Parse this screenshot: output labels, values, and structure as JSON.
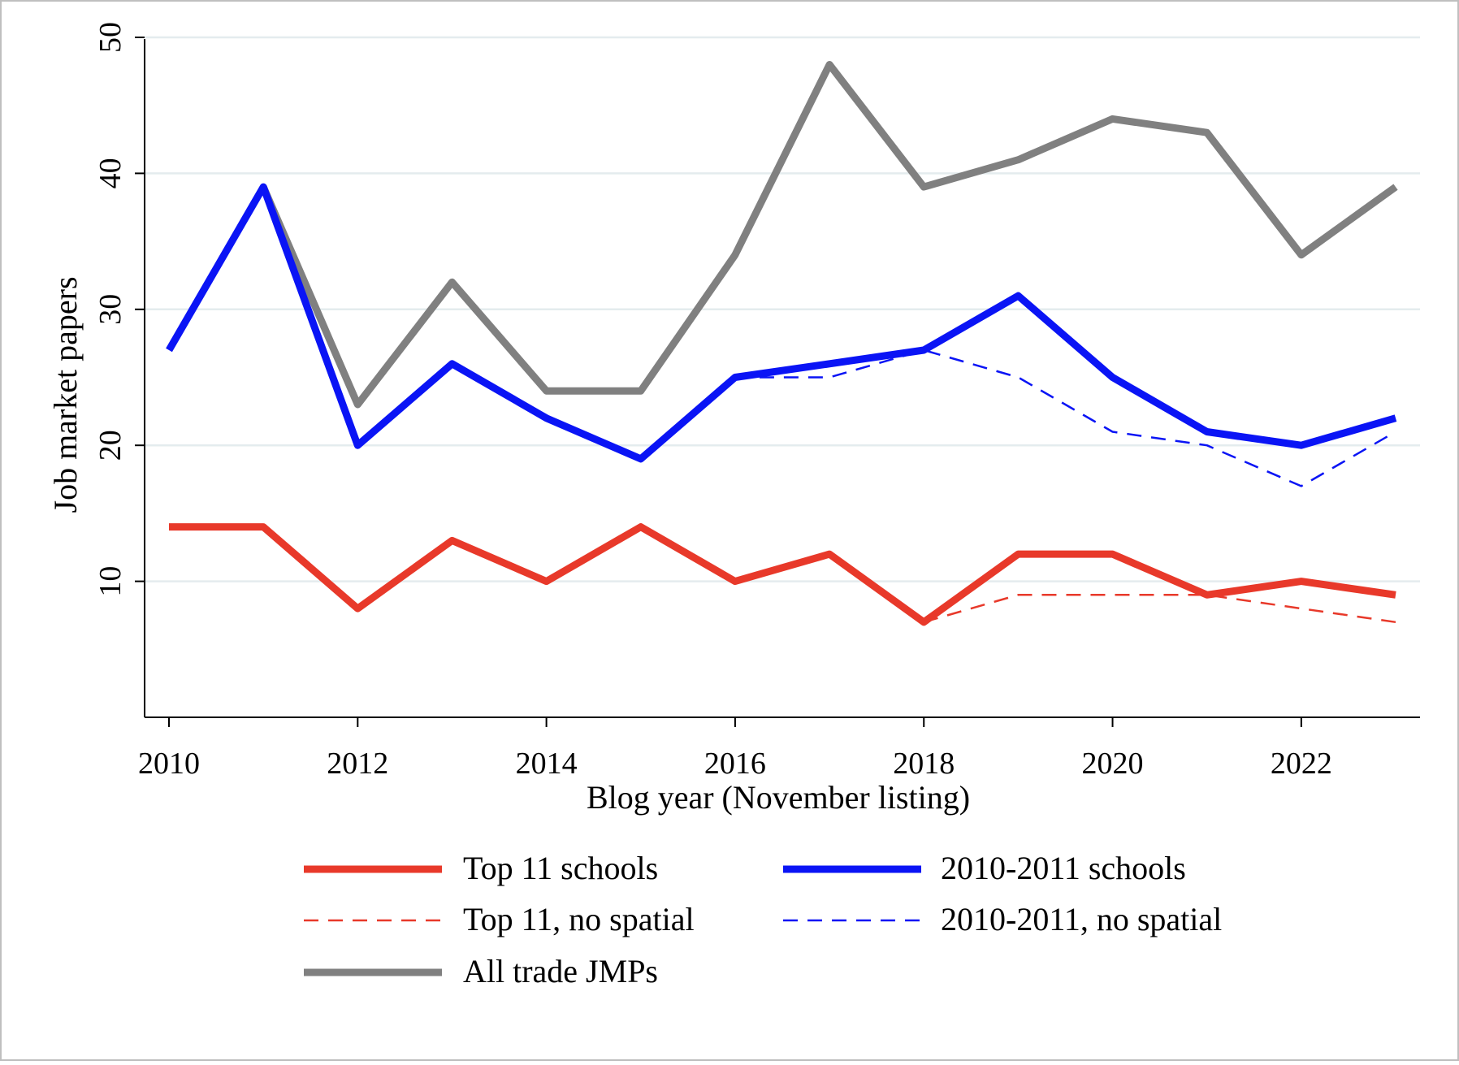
{
  "chart_data": {
    "type": "line",
    "title": "",
    "xlabel": "Blog year (November listing)",
    "ylabel": "Job market papers",
    "xlim": [
      2010,
      2023
    ],
    "ylim": [
      0,
      50
    ],
    "xticks": [
      "2010",
      "2012",
      "2014",
      "2016",
      "2018",
      "2020",
      "2022"
    ],
    "yticks": [
      "10",
      "20",
      "30",
      "40",
      "50"
    ],
    "grid": "horizontal",
    "legend_position": "bottom",
    "x": [
      2010,
      2011,
      2012,
      2013,
      2014,
      2015,
      2016,
      2017,
      2018,
      2019,
      2020,
      2021,
      2022,
      2023
    ],
    "series": [
      {
        "name": "Top 11 schools",
        "color": "#e8392a",
        "style": "solid-thick",
        "x": [
          2010,
          2011,
          2012,
          2013,
          2014,
          2015,
          2016,
          2017,
          2018,
          2019,
          2020,
          2021,
          2022,
          2023
        ],
        "values": [
          14,
          14,
          8,
          13,
          10,
          14,
          10,
          12,
          7,
          12,
          12,
          9,
          10,
          9
        ]
      },
      {
        "name": "2010-2011 schools",
        "color": "#0a14f5",
        "style": "solid-thick",
        "x": [
          2010,
          2011,
          2012,
          2013,
          2014,
          2015,
          2016,
          2017,
          2018,
          2019,
          2020,
          2021,
          2022,
          2023
        ],
        "values": [
          27,
          39,
          20,
          26,
          22,
          19,
          25,
          26,
          27,
          31,
          25,
          21,
          20,
          22
        ]
      },
      {
        "name": "Top 11, no spatial",
        "color": "#e8392a",
        "style": "dashed-thin",
        "x": [
          2018,
          2019,
          2020,
          2021,
          2022,
          2023
        ],
        "values": [
          7,
          9,
          9,
          9,
          8,
          7
        ]
      },
      {
        "name": "2010-2011, no spatial",
        "color": "#0a14f5",
        "style": "dashed-thin",
        "x": [
          2016,
          2017,
          2018,
          2019,
          2020,
          2021,
          2022,
          2023
        ],
        "values": [
          25,
          25,
          27,
          25,
          21,
          20,
          17,
          21
        ]
      },
      {
        "name": "All trade JMPs",
        "color": "#808080",
        "style": "solid-thick",
        "x": [
          2011,
          2012,
          2013,
          2014,
          2015,
          2016,
          2017,
          2018,
          2019,
          2020,
          2021,
          2022,
          2023
        ],
        "values": [
          39,
          23,
          32,
          24,
          24,
          34,
          48,
          39,
          41,
          44,
          43,
          34,
          39
        ]
      }
    ],
    "legend": [
      {
        "label": "Top 11 schools",
        "color": "#e8392a",
        "style": "solid-thick"
      },
      {
        "label": "2010-2011 schools",
        "color": "#0a14f5",
        "style": "solid-thick"
      },
      {
        "label": "Top 11, no spatial",
        "color": "#e8392a",
        "style": "dashed-thin"
      },
      {
        "label": "2010-2011, no spatial",
        "color": "#0a14f5",
        "style": "dashed-thin"
      },
      {
        "label": "All trade JMPs",
        "color": "#808080",
        "style": "solid-thick"
      }
    ],
    "colors": {
      "grid": "#e4ecee",
      "axis": "#000000",
      "frame": "#bfbfbf"
    }
  }
}
